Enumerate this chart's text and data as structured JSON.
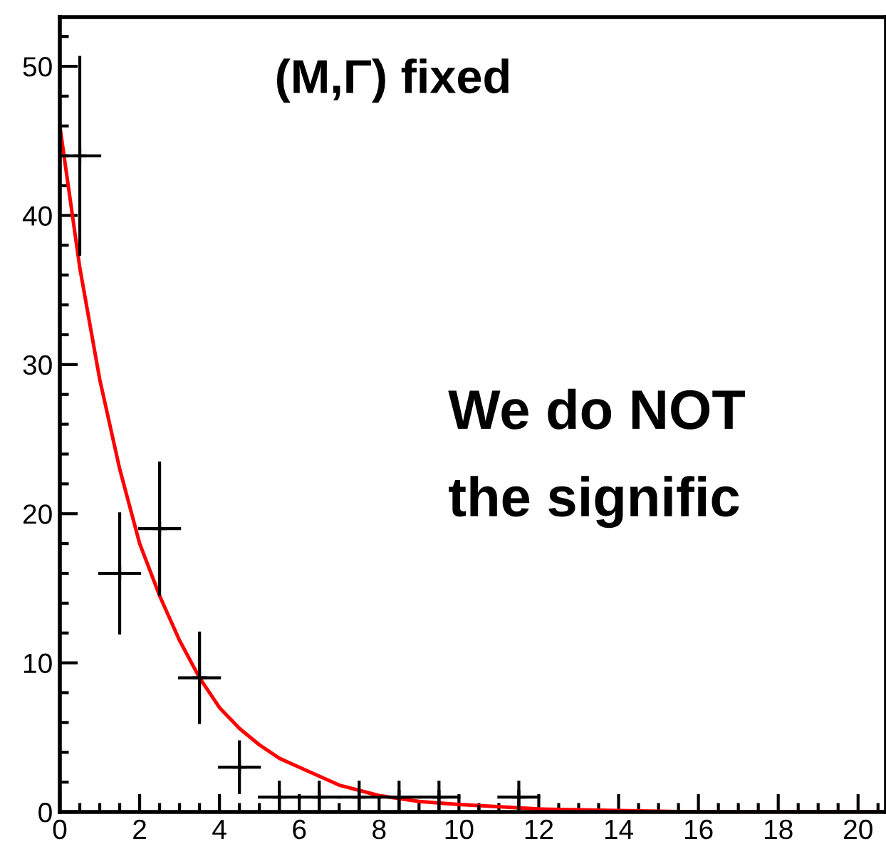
{
  "chart_data": {
    "type": "scatter",
    "annotations": [
      "(M,Γ) fixed",
      "We do NOT",
      "the signific"
    ],
    "series": [
      {
        "color": "#000000",
        "marker": "cross",
        "x": [
          0.5,
          1.5,
          2.5,
          3.5,
          4.5,
          5.5,
          6.5,
          7.5,
          8.5,
          9.5,
          10.5,
          11.5
        ],
        "values": [
          44,
          16,
          19,
          9,
          3,
          1,
          1,
          1,
          1,
          1,
          0,
          1
        ],
        "errors": [
          6.6,
          4,
          4.4,
          3,
          1.7,
          1,
          1,
          1,
          1,
          1,
          null,
          1
        ],
        "xerrors": [
          0.5,
          0.5,
          0.5,
          0.5,
          0.5,
          0.5,
          0.5,
          0.5,
          0.5,
          0.5,
          0.5,
          0.5
        ]
      },
      {
        "type": "line",
        "color": "#ff0000",
        "x": [
          0,
          0.5,
          1,
          1.5,
          2,
          2.5,
          3,
          3.5,
          4,
          4.5,
          5,
          5.5,
          6,
          7,
          8,
          9,
          10,
          12,
          14,
          16,
          20.7
        ],
        "values": [
          46,
          36.5,
          29,
          23,
          18,
          14.5,
          11.5,
          9,
          7,
          5.6,
          4.5,
          3.6,
          3,
          1.8,
          1.1,
          0.7,
          0.5,
          0.2,
          0.1,
          0,
          0
        ]
      }
    ],
    "xlim": [
      0,
      20.7
    ],
    "ylim": [
      0,
      53.3
    ],
    "xticks": [
      0,
      2,
      4,
      6,
      8,
      10,
      12,
      14,
      16,
      18,
      20
    ],
    "yticks": [
      0,
      10,
      20,
      30,
      40,
      50
    ],
    "grid": false,
    "legend": false
  }
}
